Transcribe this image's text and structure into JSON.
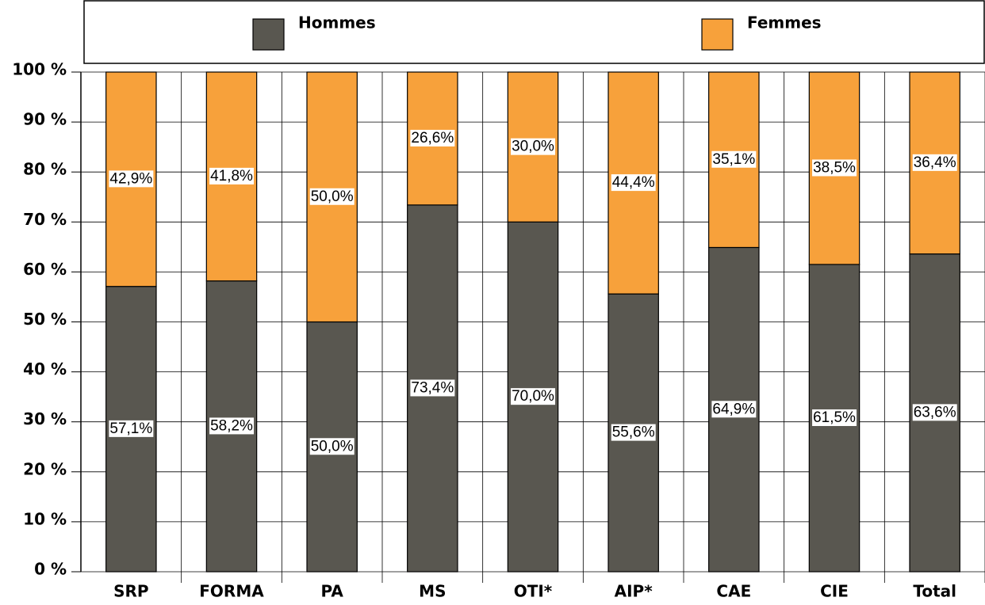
{
  "chart_data": {
    "type": "stacked_bar_100",
    "categories": [
      "SRP",
      "FORMA",
      "PA",
      "MS",
      "OTI*",
      "AIP*",
      "CAE",
      "CIE",
      "Total"
    ],
    "series": [
      {
        "name": "Hommes",
        "color": "#595750",
        "values": [
          57.1,
          58.2,
          50.0,
          73.4,
          70.0,
          55.6,
          64.9,
          61.5,
          63.6
        ],
        "value_labels": [
          "57,1%",
          "58,2%",
          "50,0%",
          "73,4%",
          "70,0%",
          "55,6%",
          "64,9%",
          "61,5%",
          "63,6%"
        ]
      },
      {
        "name": "Femmes",
        "color": "#f7a13b",
        "values": [
          42.9,
          41.8,
          50.0,
          26.6,
          30.0,
          44.4,
          35.1,
          38.5,
          36.4
        ],
        "value_labels": [
          "42,9%",
          "41,8%",
          "50,0%",
          "26,6%",
          "30,0%",
          "44,4%",
          "35,1%",
          "38,5%",
          "36,4%"
        ]
      }
    ],
    "ylim": [
      0,
      100
    ],
    "yticks": [
      {
        "value": 0,
        "label": "0 %"
      },
      {
        "value": 10,
        "label": "10 %"
      },
      {
        "value": 20,
        "label": "20 %"
      },
      {
        "value": 30,
        "label": "30 %"
      },
      {
        "value": 40,
        "label": "40 %"
      },
      {
        "value": 50,
        "label": "50 %"
      },
      {
        "value": 60,
        "label": "60 %"
      },
      {
        "value": 70,
        "label": "70 %"
      },
      {
        "value": 80,
        "label": "80 %"
      },
      {
        "value": 90,
        "label": "90 %"
      },
      {
        "value": 100,
        "label": "100 %"
      }
    ],
    "grid": true,
    "legend": "top"
  }
}
